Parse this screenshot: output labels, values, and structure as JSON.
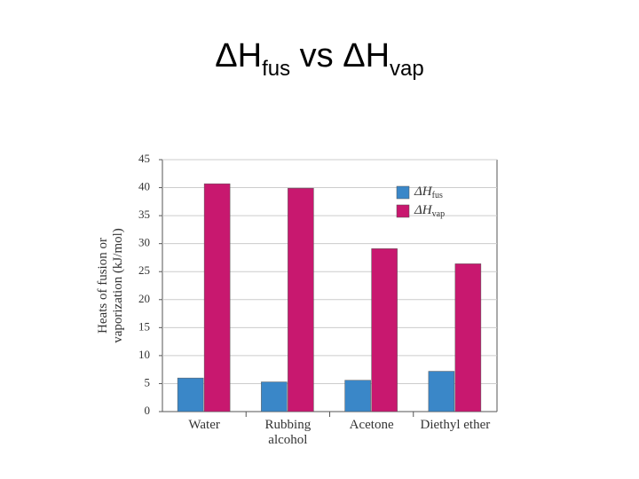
{
  "chart_data": {
    "type": "bar",
    "title": [
      "ΔH",
      "fus",
      " vs ΔH",
      "vap"
    ],
    "y_label": [
      "Heats of fusion or",
      "vaporization (kJ/mol)"
    ],
    "categories": [
      "Water",
      "Rubbing alcohol",
      "Acetone",
      "Diethyl ether"
    ],
    "series": [
      {
        "name": [
          "ΔH",
          "fus"
        ],
        "color": "#3a87c8",
        "values": [
          6.0,
          5.3,
          5.6,
          7.2
        ]
      },
      {
        "name": [
          "ΔH",
          "vap"
        ],
        "color": "#c8186f",
        "values": [
          40.7,
          39.9,
          29.1,
          26.4
        ]
      }
    ],
    "ylim": [
      0,
      45
    ],
    "yticks": [
      0,
      5,
      10,
      15,
      20,
      25,
      30,
      35,
      40,
      45
    ],
    "grid": true
  }
}
